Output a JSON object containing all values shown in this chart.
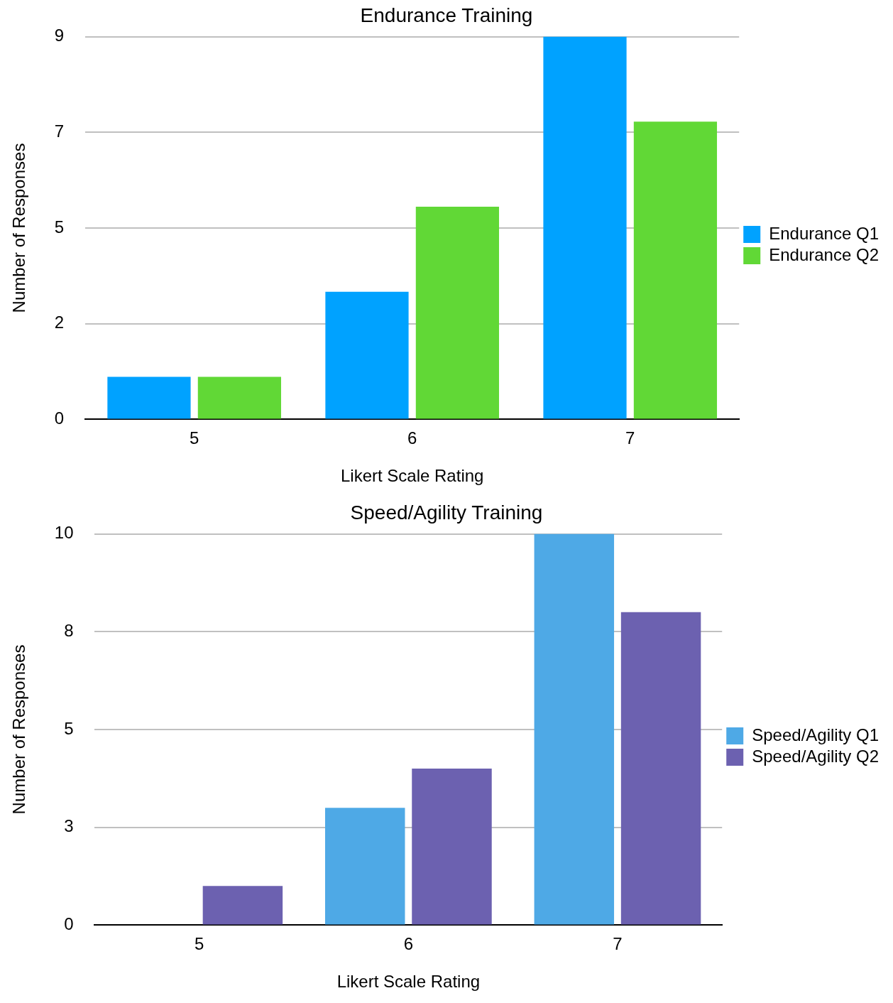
{
  "chart_data": [
    {
      "type": "bar",
      "title": "Endurance Training",
      "xlabel": "Likert Scale Rating",
      "ylabel": "Number of Responses",
      "categories": [
        "5",
        "6",
        "7"
      ],
      "series": [
        {
          "name": "Endurance Q1",
          "color": "#00a2ff",
          "values": [
            1,
            3,
            9
          ]
        },
        {
          "name": "Endurance Q2",
          "color": "#61d836",
          "values": [
            1,
            5,
            7
          ]
        }
      ],
      "ylim": [
        0,
        9
      ],
      "yticks": [
        0,
        {
          "value": 2.25,
          "label": "2"
        },
        {
          "value": 4.5,
          "label": "5"
        },
        {
          "value": 6.75,
          "label": "7"
        },
        9
      ],
      "grid": "y",
      "legend": "right"
    },
    {
      "type": "bar",
      "title": "Speed/Agility Training",
      "xlabel": "Likert Scale Rating",
      "ylabel": "Number of Responses",
      "categories": [
        "5",
        "6",
        "7"
      ],
      "series": [
        {
          "name": "Speed/Agility Q1",
          "color": "#4ea9e6",
          "values": [
            0,
            3,
            10
          ]
        },
        {
          "name": "Speed/Agility Q2",
          "color": "#6c61b0",
          "values": [
            1,
            4,
            8
          ]
        }
      ],
      "ylim": [
        0,
        10
      ],
      "yticks": [
        0,
        {
          "value": 2.5,
          "label": "3"
        },
        5,
        {
          "value": 7.5,
          "label": "8"
        },
        10
      ],
      "grid": "y",
      "legend": "right"
    }
  ]
}
